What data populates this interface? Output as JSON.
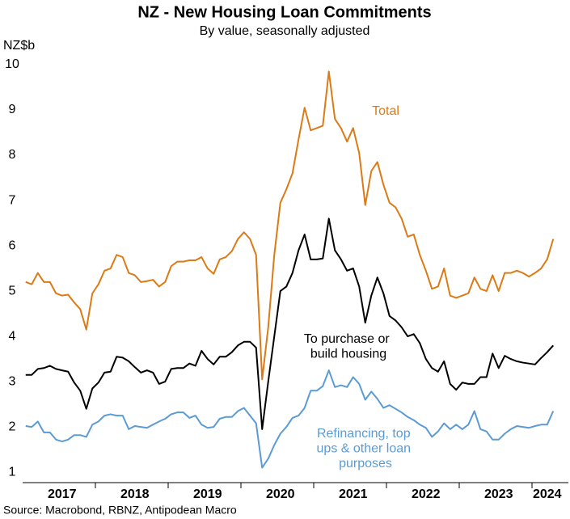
{
  "chart_data": {
    "type": "line",
    "title": "NZ - New Housing Loan Commitments",
    "subtitle": "By value, seasonally adjusted",
    "y_label": "NZ$b",
    "source": "Source: Macrobond, RBNZ, Antipodean Macro",
    "categories": [
      null,
      null,
      null,
      null,
      null,
      null,
      "2017",
      null,
      null,
      null,
      null,
      null,
      null,
      null,
      null,
      null,
      null,
      null,
      "2018",
      null,
      null,
      null,
      null,
      null,
      null,
      null,
      null,
      null,
      null,
      null,
      "2019",
      null,
      null,
      null,
      null,
      null,
      null,
      null,
      null,
      null,
      null,
      null,
      "2020",
      null,
      null,
      null,
      null,
      null,
      null,
      null,
      null,
      null,
      null,
      null,
      "2021",
      null,
      null,
      null,
      null,
      null,
      null,
      null,
      null,
      null,
      null,
      null,
      "2022",
      null,
      null,
      null,
      null,
      null,
      null,
      null,
      null,
      null,
      null,
      null,
      "2023",
      null,
      null,
      null,
      null,
      null,
      null,
      null,
      "2024",
      null
    ],
    "ylim": [
      0.77,
      10
    ],
    "yticks": [
      1,
      2,
      3,
      4,
      5,
      6,
      7,
      8,
      9,
      10
    ],
    "grid": false,
    "series": [
      {
        "name": "Total",
        "color": "#dc7a16",
        "values": [
          5.2,
          5.15,
          5.4,
          5.2,
          5.2,
          4.95,
          4.9,
          4.92,
          4.75,
          4.6,
          4.15,
          4.95,
          5.15,
          5.45,
          5.5,
          5.8,
          5.75,
          5.4,
          5.35,
          5.2,
          5.22,
          5.25,
          5.1,
          5.2,
          5.55,
          5.65,
          5.65,
          5.68,
          5.68,
          5.75,
          5.5,
          5.38,
          5.7,
          5.75,
          5.88,
          6.15,
          6.3,
          6.15,
          5.8,
          3.05,
          4.2,
          5.8,
          6.95,
          7.25,
          7.6,
          8.35,
          9.05,
          8.55,
          8.6,
          8.65,
          9.85,
          8.8,
          8.6,
          8.3,
          8.6,
          8.05,
          6.9,
          7.65,
          7.85,
          7.35,
          6.95,
          6.85,
          6.6,
          6.2,
          6.25,
          5.8,
          5.45,
          5.05,
          5.1,
          5.5,
          4.9,
          4.85,
          4.9,
          4.95,
          5.3,
          5.05,
          5.0,
          5.35,
          5.0,
          5.4,
          5.4,
          5.45,
          5.4,
          5.32,
          5.4,
          5.5,
          5.7,
          6.15
        ]
      },
      {
        "name": "To purchase or build housing",
        "color": "#000000",
        "values": [
          3.15,
          3.15,
          3.28,
          3.3,
          3.35,
          3.28,
          3.25,
          3.22,
          2.98,
          2.8,
          2.4,
          2.85,
          2.98,
          3.2,
          3.22,
          3.55,
          3.53,
          3.45,
          3.32,
          3.2,
          3.25,
          3.2,
          2.95,
          3.0,
          3.28,
          3.3,
          3.3,
          3.4,
          3.35,
          3.68,
          3.5,
          3.38,
          3.55,
          3.55,
          3.65,
          3.8,
          3.88,
          3.88,
          3.75,
          1.95,
          3.0,
          4.0,
          5.0,
          5.1,
          5.4,
          5.9,
          6.25,
          5.7,
          5.7,
          5.72,
          6.6,
          5.9,
          5.7,
          5.45,
          5.5,
          5.1,
          4.3,
          4.9,
          5.3,
          4.95,
          4.45,
          4.35,
          4.2,
          4.0,
          4.05,
          3.85,
          3.5,
          3.3,
          3.22,
          3.45,
          2.95,
          2.82,
          2.98,
          2.95,
          2.95,
          3.1,
          3.1,
          3.62,
          3.3,
          3.57,
          3.5,
          3.45,
          3.42,
          3.4,
          3.38,
          3.52,
          3.65,
          3.8
        ]
      },
      {
        "name": "Refinancing, top ups & other loan purposes",
        "color": "#5b9bd5",
        "values": [
          2.02,
          2.0,
          2.12,
          1.88,
          1.88,
          1.72,
          1.68,
          1.72,
          1.82,
          1.82,
          1.78,
          2.05,
          2.12,
          2.25,
          2.28,
          2.25,
          2.25,
          1.95,
          2.02,
          2.0,
          1.98,
          2.05,
          2.12,
          2.18,
          2.28,
          2.32,
          2.32,
          2.2,
          2.25,
          2.05,
          1.98,
          2.0,
          2.18,
          2.22,
          2.22,
          2.35,
          2.42,
          2.25,
          2.08,
          1.1,
          1.3,
          1.6,
          1.85,
          2.0,
          2.2,
          2.25,
          2.42,
          2.8,
          2.8,
          2.9,
          3.25,
          2.88,
          2.92,
          2.88,
          3.1,
          2.95,
          2.6,
          2.78,
          2.62,
          2.42,
          2.48,
          2.4,
          2.32,
          2.22,
          2.15,
          2.05,
          1.98,
          1.78,
          1.9,
          2.08,
          1.95,
          2.05,
          1.95,
          2.05,
          2.35,
          1.95,
          1.9,
          1.72,
          1.72,
          1.85,
          1.95,
          2.02,
          2.0,
          1.98,
          2.02,
          2.05,
          2.05,
          2.35
        ]
      }
    ]
  }
}
